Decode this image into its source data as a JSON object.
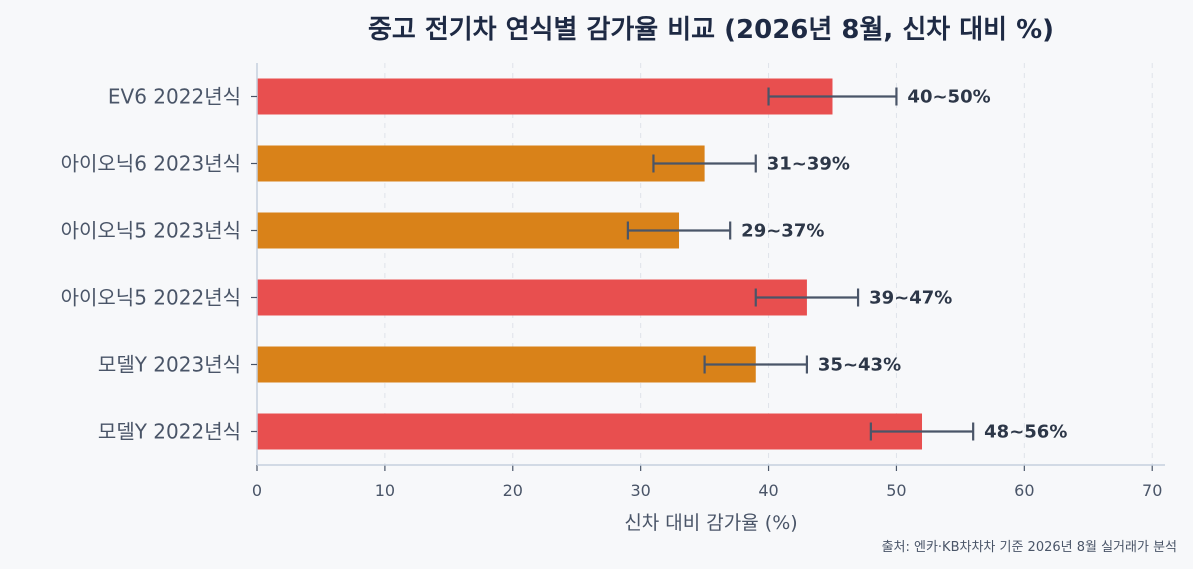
{
  "chart_data": {
    "type": "bar",
    "orientation": "horizontal",
    "title": "중고 전기차 연식별 감가율 비교 (2026년 8월, 신차 대비 %)",
    "xlabel": "신차 대비 감가율 (%)",
    "ylabel": "",
    "xlim": [
      0,
      71
    ],
    "xticks": [
      0,
      10,
      20,
      30,
      40,
      50,
      60,
      70
    ],
    "grid": true,
    "source": "출처: 엔카·KB차차차 기준 2026년 8월 실거래가 분석",
    "categories": [
      "EV6 2022년식",
      "아이오닉6 2023년식",
      "아이오닉5 2023년식",
      "아이오닉5 2022년식",
      "모델Y 2023년식",
      "모델Y 2022년식"
    ],
    "values": [
      45,
      35,
      33,
      43,
      39,
      52
    ],
    "error_low": [
      40,
      31,
      29,
      39,
      35,
      48
    ],
    "error_high": [
      50,
      39,
      37,
      47,
      43,
      56
    ],
    "data_labels": [
      "40~50%",
      "31~39%",
      "29~37%",
      "39~47%",
      "35~43%",
      "48~56%"
    ],
    "bar_colors": [
      "#e84f4f",
      "#d98219",
      "#d98219",
      "#e84f4f",
      "#d98219",
      "#e84f4f"
    ]
  }
}
